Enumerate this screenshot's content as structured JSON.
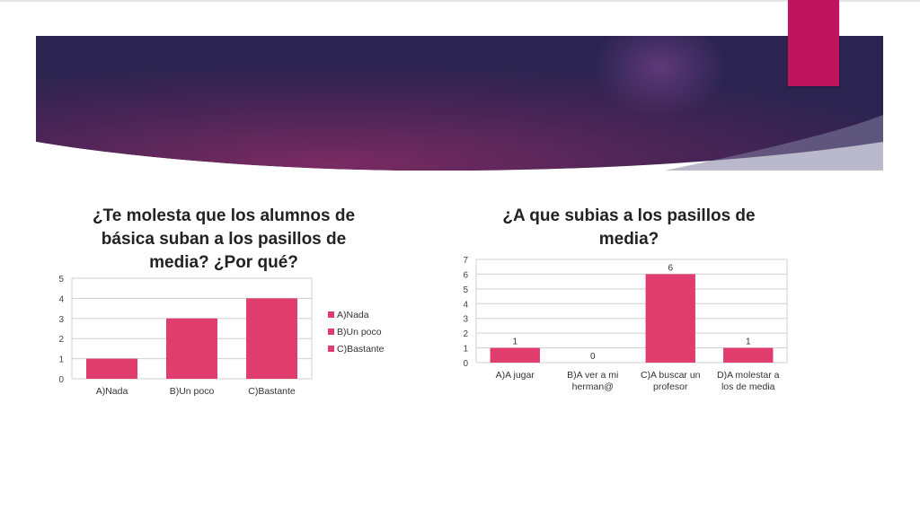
{
  "theme": {
    "accent": "#c0145f",
    "bar_color": "#e03c6e",
    "banner_dark": "#2b2450",
    "banner_mid": "#6b2a5e"
  },
  "chart_data": [
    {
      "type": "bar",
      "title": "¿Te molesta que los alumnos de básica suban a los pasillos de media? ¿Por qué?",
      "categories": [
        "A)Nada",
        "B)Un poco",
        "C)Bastante"
      ],
      "values": [
        1,
        3,
        4
      ],
      "ylim": [
        0,
        5
      ],
      "yticks": [
        0,
        1,
        2,
        3,
        4,
        5
      ],
      "legend": [
        "A)Nada",
        "B)Un poco",
        "C)Bastante"
      ],
      "legend_position": "right",
      "grid": true
    },
    {
      "type": "bar",
      "title": "¿A que subias a los pasillos de media?",
      "categories": [
        "A)A jugar",
        "B)A ver a  mi herman@",
        "C)A buscar un profesor",
        "D)A molestar a los de media"
      ],
      "category_lines": [
        [
          "A)A jugar"
        ],
        [
          "B)A ver a  mi",
          "herman@"
        ],
        [
          "C)A buscar un",
          "profesor"
        ],
        [
          "D)A molestar a",
          "los de media"
        ]
      ],
      "values": [
        1,
        0,
        6,
        1
      ],
      "data_labels": [
        "1",
        "0",
        "6",
        "1"
      ],
      "ylim": [
        0,
        7
      ],
      "yticks": [
        0,
        1,
        2,
        3,
        4,
        5,
        6,
        7
      ],
      "grid": true
    }
  ]
}
